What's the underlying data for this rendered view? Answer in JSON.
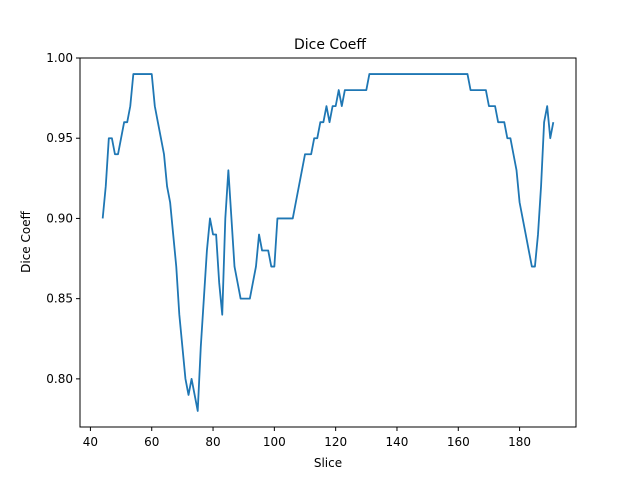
{
  "chart_data": {
    "type": "line",
    "title": "Dice Coeff",
    "xlabel": "Slice",
    "ylabel": "Dice Coeff",
    "xlim": [
      36.6,
      198.4
    ],
    "ylim": [
      0.77,
      1.0
    ],
    "xticks": [
      40,
      60,
      80,
      100,
      120,
      140,
      160,
      180
    ],
    "yticks": [
      0.8,
      0.85,
      0.9,
      0.95,
      1.0
    ],
    "xtick_labels": [
      "40",
      "60",
      "80",
      "100",
      "120",
      "140",
      "160",
      "180"
    ],
    "ytick_labels": [
      "0.80",
      "0.85",
      "0.90",
      "0.95",
      "1.00"
    ],
    "grid": false,
    "series": [
      {
        "color": "#1f77b4",
        "x": [
          44,
          45,
          46,
          47,
          48,
          49,
          50,
          51,
          52,
          53,
          54,
          55,
          56,
          57,
          58,
          59,
          60,
          61,
          62,
          63,
          64,
          65,
          66,
          67,
          68,
          69,
          70,
          71,
          72,
          73,
          74,
          75,
          76,
          77,
          78,
          79,
          80,
          81,
          82,
          83,
          84,
          85,
          86,
          87,
          88,
          89,
          90,
          91,
          92,
          93,
          94,
          95,
          96,
          97,
          98,
          99,
          100,
          101,
          102,
          103,
          104,
          105,
          106,
          107,
          108,
          109,
          110,
          111,
          112,
          113,
          114,
          115,
          116,
          117,
          118,
          119,
          120,
          121,
          122,
          123,
          124,
          125,
          126,
          127,
          128,
          129,
          130,
          131,
          132,
          133,
          134,
          135,
          136,
          137,
          138,
          139,
          140,
          141,
          142,
          143,
          144,
          145,
          146,
          147,
          148,
          149,
          150,
          151,
          152,
          153,
          154,
          155,
          156,
          157,
          158,
          159,
          160,
          161,
          162,
          163,
          164,
          165,
          166,
          167,
          168,
          169,
          170,
          171,
          172,
          173,
          174,
          175,
          176,
          177,
          178,
          179,
          180,
          181,
          182,
          183,
          184,
          185,
          186,
          187,
          188,
          189,
          190,
          191
        ],
        "y": [
          0.9,
          0.92,
          0.95,
          0.95,
          0.94,
          0.94,
          0.95,
          0.96,
          0.96,
          0.97,
          0.99,
          0.99,
          0.99,
          0.99,
          0.99,
          0.99,
          0.99,
          0.97,
          0.96,
          0.95,
          0.94,
          0.92,
          0.91,
          0.89,
          0.87,
          0.84,
          0.82,
          0.8,
          0.79,
          0.8,
          0.79,
          0.78,
          0.82,
          0.85,
          0.88,
          0.9,
          0.89,
          0.89,
          0.86,
          0.84,
          0.9,
          0.93,
          0.9,
          0.87,
          0.86,
          0.85,
          0.85,
          0.85,
          0.85,
          0.86,
          0.87,
          0.89,
          0.88,
          0.88,
          0.88,
          0.87,
          0.87,
          0.9,
          0.9,
          0.9,
          0.9,
          0.9,
          0.9,
          0.91,
          0.92,
          0.93,
          0.94,
          0.94,
          0.94,
          0.95,
          0.95,
          0.96,
          0.96,
          0.97,
          0.96,
          0.97,
          0.97,
          0.98,
          0.97,
          0.98,
          0.98,
          0.98,
          0.98,
          0.98,
          0.98,
          0.98,
          0.98,
          0.99,
          0.99,
          0.99,
          0.99,
          0.99,
          0.99,
          0.99,
          0.99,
          0.99,
          0.99,
          0.99,
          0.99,
          0.99,
          0.99,
          0.99,
          0.99,
          0.99,
          0.99,
          0.99,
          0.99,
          0.99,
          0.99,
          0.99,
          0.99,
          0.99,
          0.99,
          0.99,
          0.99,
          0.99,
          0.99,
          0.99,
          0.99,
          0.99,
          0.98,
          0.98,
          0.98,
          0.98,
          0.98,
          0.98,
          0.97,
          0.97,
          0.97,
          0.96,
          0.96,
          0.96,
          0.95,
          0.95,
          0.94,
          0.93,
          0.91,
          0.9,
          0.89,
          0.88,
          0.87,
          0.87,
          0.89,
          0.92,
          0.96,
          0.97,
          0.95,
          0.96
        ]
      }
    ]
  }
}
